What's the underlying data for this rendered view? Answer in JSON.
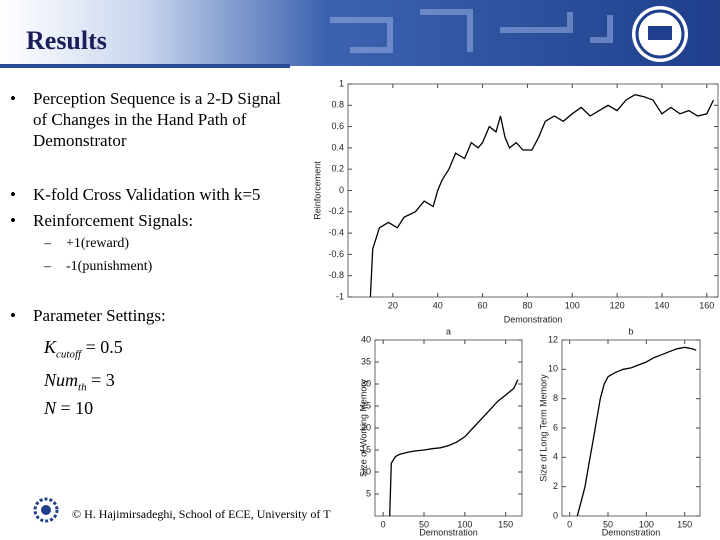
{
  "header": {
    "title": "Results"
  },
  "bullets": [
    "Perception Sequence is a 2-D Signal of Changes in the Hand Path of Demonstrator",
    "K-fold Cross Validation with k=5",
    "Reinforcement Signals:"
  ],
  "sub_bullets": [
    "+1(reward)",
    "-1(punishment)"
  ],
  "parameters": {
    "heading": "Parameter Settings:",
    "items": [
      {
        "symbol": "K",
        "subscript": "cutoff",
        "value": 0.5
      },
      {
        "symbol": "Num",
        "subscript": "th",
        "value": 3
      },
      {
        "symbol": "N",
        "value": 10
      }
    ]
  },
  "footer": "© H. Hajimirsadeghi, School of ECE, University of T",
  "chart_data": [
    {
      "type": "line",
      "xlabel": "Demonstration",
      "ylabel": "Reinforcement",
      "color": "#000000",
      "x": [
        10,
        11,
        14,
        18,
        22,
        25,
        30,
        34,
        38,
        40,
        42,
        45,
        48,
        52,
        55,
        58,
        60,
        63,
        66,
        68,
        70,
        72,
        75,
        78,
        82,
        85,
        88,
        92,
        96,
        100,
        104,
        108,
        112,
        116,
        120,
        124,
        128,
        132,
        136,
        140,
        144,
        148,
        152,
        156,
        160,
        163
      ],
      "values": [
        -1,
        -0.55,
        -0.35,
        -0.3,
        -0.35,
        -0.25,
        -0.2,
        -0.1,
        -0.15,
        0,
        0.1,
        0.2,
        0.35,
        0.3,
        0.45,
        0.4,
        0.45,
        0.6,
        0.55,
        0.7,
        0.5,
        0.4,
        0.45,
        0.38,
        0.38,
        0.5,
        0.65,
        0.7,
        0.65,
        0.72,
        0.78,
        0.7,
        0.75,
        0.8,
        0.75,
        0.85,
        0.9,
        0.88,
        0.85,
        0.72,
        0.78,
        0.72,
        0.75,
        0.7,
        0.72,
        0.85
      ],
      "xlim": [
        0,
        165
      ],
      "ylim": [
        -1,
        1
      ],
      "xticks": [
        20,
        40,
        60,
        80,
        100,
        120,
        140,
        160
      ],
      "yticks": [
        1,
        0.8,
        0.6,
        0.4,
        0.2,
        0,
        -0.2,
        -0.4,
        -0.6,
        -0.8,
        -1
      ]
    },
    {
      "type": "line",
      "title": "a",
      "xlabel": "Demonstration",
      "ylabel": "Size of Working Memory",
      "color": "#000000",
      "x": [
        8,
        10,
        15,
        20,
        30,
        40,
        50,
        60,
        70,
        80,
        90,
        100,
        110,
        120,
        130,
        140,
        150,
        160,
        165
      ],
      "values": [
        0,
        12,
        13.5,
        14,
        14.5,
        14.8,
        15,
        15.3,
        15.5,
        16,
        16.8,
        18,
        20,
        22,
        24,
        26,
        27.5,
        29,
        31
      ],
      "xlim": [
        -10,
        170
      ],
      "ylim": [
        0,
        40
      ],
      "xticks": [
        0,
        50,
        100,
        150
      ],
      "yticks": [
        5,
        10,
        15,
        20,
        25,
        30,
        35,
        40
      ]
    },
    {
      "type": "line",
      "title": "b",
      "xlabel": "Demonstration",
      "ylabel": "Size of Long Term Memory",
      "color": "#000000",
      "x": [
        10,
        15,
        20,
        25,
        30,
        35,
        40,
        45,
        50,
        60,
        70,
        80,
        90,
        100,
        110,
        120,
        130,
        140,
        150,
        160,
        165
      ],
      "values": [
        0,
        1,
        2,
        3.5,
        5,
        6.5,
        8,
        9,
        9.5,
        9.8,
        10,
        10.1,
        10.3,
        10.5,
        10.8,
        11,
        11.2,
        11.4,
        11.5,
        11.4,
        11.3
      ],
      "xlim": [
        -10,
        170
      ],
      "ylim": [
        0,
        12
      ],
      "xticks": [
        0,
        50,
        100,
        150
      ],
      "yticks": [
        0,
        2,
        4,
        6,
        8,
        10,
        12
      ]
    }
  ]
}
